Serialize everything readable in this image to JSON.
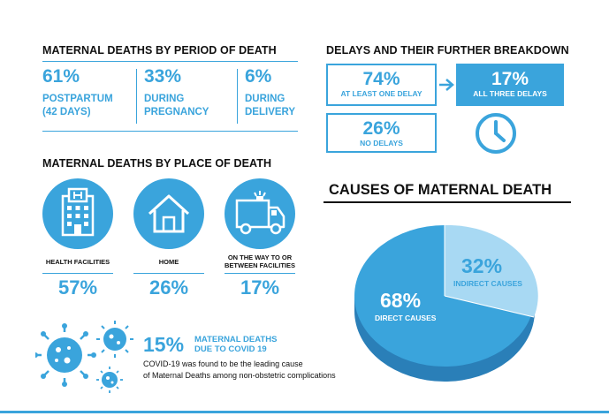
{
  "period": {
    "heading": "MATERNAL DEATHS BY PERIOD OF DEATH",
    "items": [
      {
        "pct": "61%",
        "line1": "POSTPARTUM",
        "line2": "(42 DAYS)"
      },
      {
        "pct": "33%",
        "line1": "DURING",
        "line2": "PREGNANCY"
      },
      {
        "pct": "6%",
        "line1": "DURING",
        "line2": "DELIVERY"
      }
    ]
  },
  "delays": {
    "heading": "DELAYS AND THEIR FURTHER BREAKDOWN",
    "at_least_one": {
      "pct": "74%",
      "label": "AT LEAST ONE DELAY"
    },
    "all_three": {
      "pct": "17%",
      "label": "ALL THREE DELAYS"
    },
    "none": {
      "pct": "26%",
      "label": "NO DELAYS"
    }
  },
  "place": {
    "heading": "MATERNAL DEATHS BY PLACE OF DEATH",
    "items": [
      {
        "label": "HEALTH FACILITIES",
        "label2": "",
        "pct": "57%",
        "icon": "hospital-icon"
      },
      {
        "label": "HOME",
        "label2": "",
        "pct": "26%",
        "icon": "house-icon"
      },
      {
        "label": "ON THE WAY TO OR",
        "label2": "BETWEEN FACILITIES",
        "pct": "17%",
        "icon": "ambulance-icon"
      }
    ]
  },
  "covid": {
    "pct": "15%",
    "label1": "MATERNAL DEATHS",
    "label2": "DUE TO COVID 19",
    "text1": "COVID-19 was found to be the leading cause",
    "text2": "of Maternal Deaths among non-obstetric complications"
  },
  "causes": {
    "heading": "CAUSES OF MATERNAL DEATH",
    "direct": {
      "pct": "68%",
      "label": "DIRECT CAUSES"
    },
    "indirect": {
      "pct": "32%",
      "label": "INDIRECT CAUSES"
    }
  },
  "colors": {
    "accent": "#3aa4dc",
    "light": "#a8d9f3",
    "dark": "#2a7fb8"
  }
}
